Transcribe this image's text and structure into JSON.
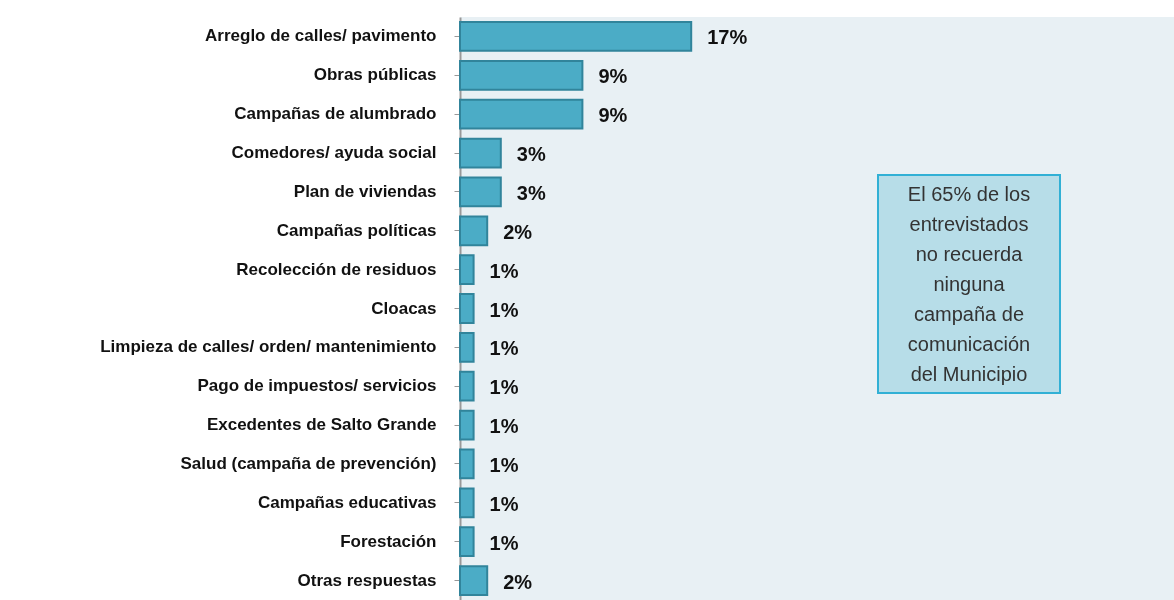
{
  "chart_data": {
    "type": "bar",
    "orientation": "horizontal",
    "categories": [
      "Arreglo de calles/ pavimento",
      "Obras públicas",
      "Campañas de alumbrado",
      "Comedores/ ayuda social",
      "Plan de viviendas",
      "Campañas políticas",
      "Recolección de residuos",
      "Cloacas",
      "Limpieza de calles/ orden/ mantenimiento",
      "Pago de impuestos/ servicios",
      "Excedentes de Salto Grande",
      "Salud (campaña de prevención)",
      "Campañas educativas",
      "Forestación",
      "Otras respuestas"
    ],
    "values": [
      17,
      9,
      9,
      3,
      3,
      2,
      1,
      1,
      1,
      1,
      1,
      1,
      1,
      1,
      2
    ],
    "value_labels": [
      "17%",
      "9%",
      "9%",
      "3%",
      "3%",
      "2%",
      "1%",
      "1%",
      "1%",
      "1%",
      "1%",
      "1%",
      "1%",
      "1%",
      "2%"
    ],
    "color": "#4bacc6",
    "xlim": [
      0,
      52.5
    ],
    "tick_labels": "y",
    "grid": false,
    "annotations": [
      "El 65% de los entrevistados no recuerda ninguna campaña de comunicación del Municipio"
    ]
  }
}
